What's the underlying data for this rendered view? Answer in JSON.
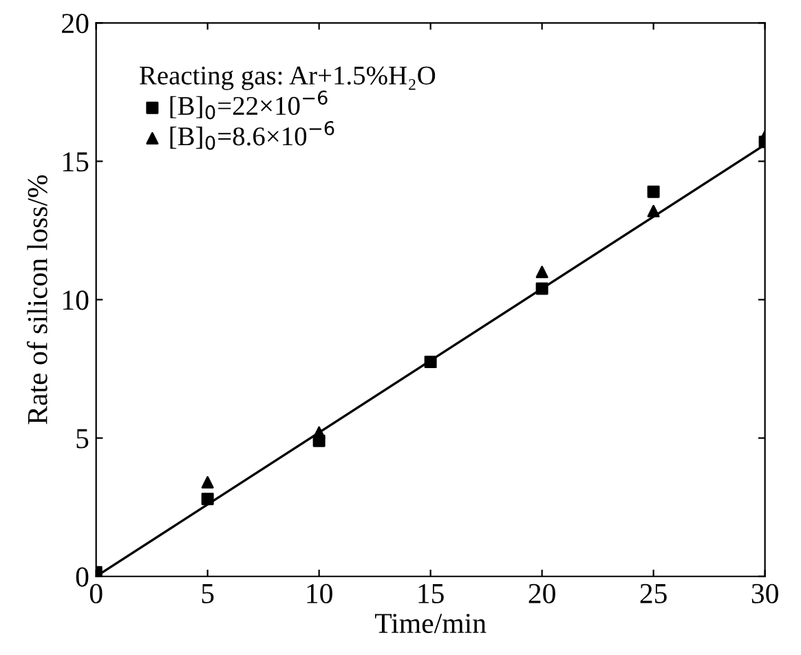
{
  "chart_data": {
    "type": "scatter",
    "xlabel": "Time/min",
    "ylabel": "Rate of silicon loss/%",
    "legend_title": "Reacting gas: Ar+1.5%H₂O",
    "xlim": [
      0,
      30
    ],
    "ylim": [
      0,
      20
    ],
    "xticks": [
      0,
      5,
      10,
      15,
      20,
      25,
      30
    ],
    "yticks": [
      0,
      5,
      10,
      15,
      20
    ],
    "grid": false,
    "legend": "top left",
    "series": [
      {
        "name": "[B]$_{0}$=22×10$^{−6}$",
        "color": "#000000",
        "marker": "square",
        "x": [
          0,
          5,
          10,
          15,
          20,
          25,
          30
        ],
        "values": [
          0.15,
          2.8,
          4.9,
          7.75,
          10.4,
          13.9,
          15.7
        ]
      },
      {
        "name": "[B]$_{0}$=8.6×10$^{−6}$",
        "color": "#000000",
        "marker": "triangle",
        "x": [
          5,
          10,
          15,
          20,
          25,
          30
        ],
        "values": [
          3.4,
          5.2,
          null,
          11.0,
          13.2,
          15.9
        ]
      },
      {
        "type": "line",
        "color": "#000000",
        "marker": "none",
        "line_style": "solid",
        "x": [
          0,
          30
        ],
        "values": [
          0,
          15.6
        ]
      }
    ]
  }
}
